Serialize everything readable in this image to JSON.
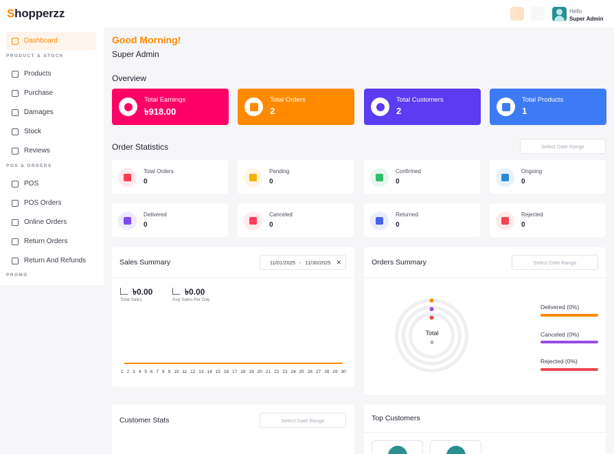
{
  "app": {
    "logo_mark": "S",
    "logo_rest": "hopperzz"
  },
  "topbar": {
    "hello": "Hello",
    "user_name": "Super Admin",
    "icons": [
      "bookmark-icon",
      "menu-lines-icon"
    ]
  },
  "sidebar": {
    "items": [
      {
        "label": "Dashboard",
        "icon": "dashboard-icon"
      },
      {
        "label": "Products",
        "icon": "products-icon"
      },
      {
        "label": "Purchase",
        "icon": "purchase-icon"
      },
      {
        "label": "Damages",
        "icon": "damages-icon"
      },
      {
        "label": "Stock",
        "icon": "stock-icon"
      },
      {
        "label": "Reviews",
        "icon": "reviews-icon"
      },
      {
        "label": "POS",
        "icon": "pos-icon"
      },
      {
        "label": "POS Orders",
        "icon": "pos-orders-icon"
      },
      {
        "label": "Online Orders",
        "icon": "online-orders-icon"
      },
      {
        "label": "Return Orders",
        "icon": "return-orders-icon"
      },
      {
        "label": "Return And Refunds",
        "icon": "refund-icon"
      }
    ],
    "sections": [
      "PRODUCT & STOCK",
      "POS & ORDERS",
      "PROMO"
    ]
  },
  "main": {
    "greeting": "Good Morning!",
    "user": "Super Admin",
    "overview_title": "Overview",
    "kpis": [
      {
        "label": "Total Earnings",
        "value": "৳918.00",
        "color": "#ff0066",
        "icon": "dollar-icon"
      },
      {
        "label": "Total Orders",
        "value": "2",
        "color": "#ff8a00",
        "icon": "box-icon"
      },
      {
        "label": "Total Customers",
        "value": "2",
        "color": "#5b3cf0",
        "icon": "users-icon"
      },
      {
        "label": "Total Products",
        "value": "1",
        "color": "#3d7bf5",
        "icon": "document-icon"
      }
    ],
    "order_stats_title": "Order Statistics",
    "date_placeholder": "Select Date Range",
    "stats": [
      {
        "label": "Total Orders",
        "value": "0",
        "bg": "#ffe9ec",
        "fg": "#ff3b4f"
      },
      {
        "label": "Pending",
        "value": "0",
        "bg": "#fff6e4",
        "fg": "#f5b400"
      },
      {
        "label": "Confirmed",
        "value": "0",
        "bg": "#e7f7ee",
        "fg": "#2fbf6b"
      },
      {
        "label": "Ongoing",
        "value": "0",
        "bg": "#e6f2fb",
        "fg": "#2a8bd6"
      },
      {
        "label": "Delivered",
        "value": "0",
        "bg": "#efeafe",
        "fg": "#7a4cf0"
      },
      {
        "label": "Canceled",
        "value": "0",
        "bg": "#ffeaec",
        "fg": "#ff3b5c"
      },
      {
        "label": "Returned",
        "value": "0",
        "bg": "#e9edfd",
        "fg": "#4b63e8"
      },
      {
        "label": "Rejected",
        "value": "0",
        "bg": "#ffeaea",
        "fg": "#f0454f"
      }
    ],
    "sales_summary": {
      "title": "Sales Summary",
      "date_from": "11/01/2025",
      "date_sep": "-",
      "date_to": "11/30/2025",
      "total_sales": "৳0.00",
      "total_sales_label": "Total Sales",
      "avg_sales": "৳0.00",
      "avg_sales_label": "Avg Sales Per Day"
    },
    "orders_summary": {
      "title": "Orders Summary",
      "center_label": "Total",
      "center_value": "0",
      "legend": [
        {
          "label": "Delivered (0%)",
          "color": "#ff8a00"
        },
        {
          "label": "Canceled (0%)",
          "color": "#9b4be6"
        },
        {
          "label": "Rejected (0%)",
          "color": "#f0454f"
        }
      ]
    },
    "customer_stats": {
      "title": "Customer Stats"
    },
    "top_customers": {
      "title": "Top Customers"
    }
  },
  "chart_data": {
    "type": "line",
    "x": [
      1,
      2,
      3,
      4,
      5,
      6,
      7,
      8,
      9,
      10,
      11,
      12,
      13,
      14,
      15,
      16,
      17,
      18,
      19,
      20,
      21,
      22,
      23,
      24,
      25,
      26,
      27,
      28,
      29,
      30
    ],
    "series": [
      {
        "values": [
          0,
          0,
          0,
          0,
          0,
          0,
          0,
          0,
          0,
          0,
          0,
          0,
          0,
          0,
          0,
          0,
          0,
          0,
          0,
          0,
          0,
          0,
          0,
          0,
          0,
          0,
          0,
          0,
          0,
          0
        ]
      }
    ],
    "title": "Sales Summary",
    "color": "#ff8a00"
  }
}
